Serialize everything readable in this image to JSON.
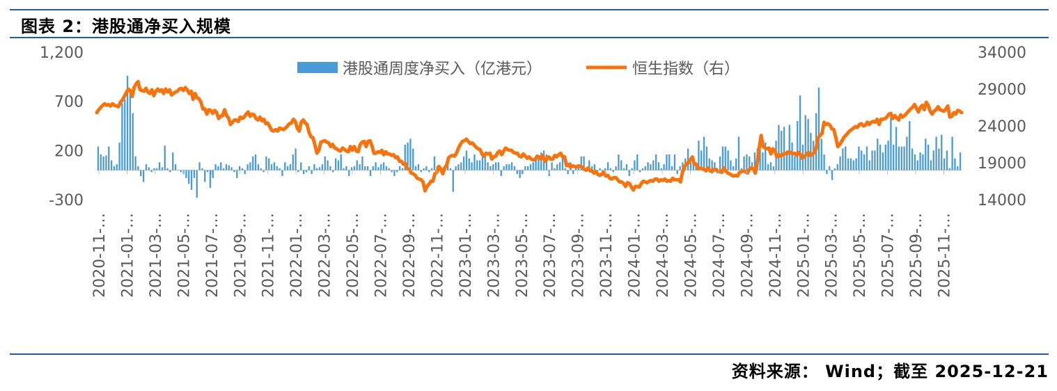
{
  "title": "图表 2：港股通净买入规模",
  "source": "资料来源： Wind；截至 2025-12-21",
  "colors": {
    "bar": "#4a9ad8",
    "line": "#f5740f",
    "rule": "#1f5f9f",
    "text": "#595959"
  },
  "chart_data": {
    "type": "bar+line",
    "y_left": {
      "min": -300,
      "max": 1200,
      "ticks": [
        "-300",
        "200",
        "700",
        "1,200"
      ]
    },
    "y_right": {
      "min": 14000,
      "max": 34000,
      "ticks": [
        "14000",
        "19000",
        "24000",
        "29000",
        "34000"
      ]
    },
    "x_ticks": [
      "2020-11-…",
      "2021-01-…",
      "2021-03-…",
      "2021-05-…",
      "2021-07-…",
      "2021-09-…",
      "2021-11-…",
      "2022-01-…",
      "2022-03-…",
      "2022-05-…",
      "2022-07-…",
      "2022-09-…",
      "2022-11-…",
      "2023-01-…",
      "2023-03-…",
      "2023-05-…",
      "2023-07-…",
      "2023-09-…",
      "2023-11-…",
      "2024-01-…",
      "2024-03-…",
      "2024-05-…",
      "2024-07-…",
      "2024-09-…",
      "2024-11-…",
      "2025-01-…",
      "2025-03-…",
      "2025-05-…",
      "2025-07-…",
      "2025-09-…",
      "2025-11-…"
    ],
    "series": [
      {
        "name": "港股通周度净买入（亿港元）",
        "axis": "left",
        "kind": "bar",
        "values": [
          240,
          160,
          140,
          150,
          240,
          100,
          40,
          60,
          280,
          680,
          720,
          960,
          800,
          580,
          140,
          40,
          -60,
          -120,
          60,
          30,
          -20,
          20,
          20,
          80,
          30,
          250,
          20,
          -20,
          180,
          60,
          0,
          -20,
          -40,
          -80,
          -140,
          -200,
          -80,
          -280,
          80,
          20,
          -120,
          -20,
          -180,
          -80,
          60,
          40,
          80,
          20,
          60,
          50,
          30,
          -20,
          -80,
          40,
          20,
          -40,
          60,
          80,
          140,
          160,
          60,
          20,
          -20,
          140,
          120,
          60,
          80,
          40,
          20,
          -60,
          80,
          40,
          60,
          160,
          220,
          -20,
          80,
          -40,
          -20,
          40,
          -40,
          60,
          20,
          30,
          60,
          140,
          100,
          40,
          -20,
          120,
          100,
          160,
          20,
          40,
          -60,
          30,
          40,
          100,
          60,
          140,
          40,
          40,
          -60,
          40,
          80,
          30,
          60,
          80,
          40,
          20,
          -20,
          -60,
          -20,
          40,
          20,
          260,
          280,
          320,
          220,
          40,
          60,
          -20,
          20,
          40,
          -20,
          20,
          140,
          40,
          20,
          -20,
          20,
          80,
          20,
          -220,
          40,
          60,
          80,
          140,
          200,
          120,
          80,
          160,
          100,
          100,
          140,
          160,
          80,
          40,
          60,
          80,
          80,
          -60,
          40,
          60,
          60,
          80,
          40,
          -40,
          -80,
          -40,
          40,
          40,
          60,
          80,
          140,
          140,
          180,
          200,
          160,
          -60,
          80,
          20,
          60,
          80,
          120,
          20,
          -40,
          80,
          -40,
          20,
          40,
          140,
          140,
          20,
          100,
          40,
          60,
          -20,
          20,
          -60,
          20,
          80,
          20,
          -20,
          40,
          160,
          100,
          20,
          60,
          -60,
          20,
          100,
          160,
          -20,
          20,
          40,
          80,
          60,
          100,
          160,
          80,
          20,
          60,
          160,
          160,
          40,
          160,
          -40,
          40,
          80,
          120,
          220,
          80,
          60,
          80,
          300,
          200,
          340,
          240,
          120,
          100,
          80,
          20,
          140,
          240,
          240,
          200,
          100,
          40,
          120,
          340,
          20,
          140,
          160,
          140,
          80,
          180,
          220,
          220,
          180,
          280,
          60,
          80,
          40,
          300,
          460,
          400,
          440,
          200,
          460,
          280,
          140,
          500,
          760,
          260,
          560,
          520,
          380,
          300,
          580,
          840,
          320,
          160,
          -40,
          40,
          -100,
          20,
          60,
          140,
          220,
          240,
          120,
          120,
          100,
          120,
          240,
          200,
          160,
          240,
          100,
          200,
          200,
          320,
          260,
          180,
          260,
          300,
          540,
          260,
          440,
          240,
          240,
          240,
          340,
          500,
          220,
          160,
          100,
          180,
          160,
          320,
          260,
          100,
          200,
          340,
          220,
          360,
          120,
          200,
          20,
          340,
          120,
          40,
          180
        ]
      },
      {
        "name": "恒生指数（右）",
        "axis": "right",
        "kind": "line",
        "values": [
          25800,
          26200,
          26500,
          26800,
          27000,
          26800,
          26900,
          26700,
          27000,
          26800,
          26700,
          26600,
          27200,
          27500,
          28000,
          28500,
          29000,
          28800,
          28000,
          29200,
          29700,
          30000,
          28900,
          28800,
          28700,
          29100,
          28600,
          28400,
          28900,
          28100,
          28700,
          29000,
          28700,
          28900,
          28400,
          29000,
          28600,
          28900,
          28200,
          28400,
          28600,
          28700,
          29000,
          29100,
          28800,
          29200,
          28900,
          28400,
          28700,
          27600,
          28400,
          27800,
          27700,
          27200,
          26300,
          26300,
          25600,
          26200,
          26100,
          25700,
          26100,
          25800,
          25000,
          25300,
          25400,
          26200,
          25400,
          25100,
          24200,
          24500,
          24800,
          24800,
          24600,
          25200,
          25000,
          25200,
          25600,
          25900,
          25300,
          25600,
          25500,
          25000,
          24800,
          25200,
          24700,
          24900,
          24300,
          24400,
          23900,
          23400,
          23300,
          23500,
          23300,
          23700,
          23600,
          23500,
          23700,
          24000,
          24300,
          24400,
          24900,
          24600,
          23700,
          23300,
          24500,
          24800,
          24400,
          24200,
          23100,
          22500,
          22400,
          21400,
          20300,
          20700,
          21800,
          21900,
          22000,
          21800,
          21700,
          21200,
          21500,
          21000,
          20900,
          20700,
          20600,
          21000,
          20800,
          20600,
          20500,
          21200,
          20700,
          21200,
          20600,
          20500,
          21500,
          21800,
          21900,
          21200,
          21900,
          22000,
          21300,
          20300,
          20300,
          20500,
          20400,
          20700,
          20100,
          20500,
          20200,
          20200,
          20000,
          20100,
          19700,
          19800,
          19200,
          19200,
          18800,
          18900,
          18200,
          18100,
          17600,
          17500,
          17300,
          16900,
          16800,
          16700,
          16400,
          15200,
          15800,
          16100,
          16500,
          16500,
          17500,
          17700,
          18500,
          18200,
          17500,
          18300,
          18700,
          19700,
          19900,
          20000,
          19900,
          20300,
          21000,
          21500,
          21900,
          22000,
          22200,
          21900,
          21600,
          21700,
          21400,
          21100,
          20900,
          20800,
          20200,
          19900,
          20300,
          20200,
          20300,
          19500,
          19800,
          19900,
          20400,
          20600,
          20100,
          20600,
          21000,
          20800,
          20700,
          20700,
          20400,
          20300,
          20300,
          19900,
          19800,
          20200,
          19900,
          19600,
          19800,
          19500,
          19400,
          19400,
          19900,
          19800,
          19500,
          20000,
          19200,
          19500,
          19800,
          19500,
          19500,
          20000,
          19800,
          20100,
          20300,
          19800,
          19800,
          18600,
          18800,
          18400,
          18600,
          18500,
          18400,
          18600,
          18500,
          18400,
          18100,
          18000,
          18300,
          17900,
          17900,
          17600,
          17800,
          17400,
          17300,
          17500,
          17700,
          17200,
          17300,
          16900,
          16800,
          17000,
          17000,
          16700,
          16400,
          16400,
          16200,
          15800,
          16300,
          16200,
          15700,
          15300,
          15800,
          15800,
          15700,
          16200,
          16500,
          16400,
          16300,
          16500,
          16600,
          16500,
          16800,
          16800,
          16500,
          16700,
          16600,
          16800,
          16500,
          16600,
          16500,
          16900,
          16700,
          16700,
          16700,
          16400,
          17800,
          18400,
          18900,
          19000,
          19400,
          19800,
          18800,
          18800,
          18200,
          18300,
          18200,
          18100,
          17900,
          18300,
          17900,
          17800,
          18100,
          18100,
          17800,
          17800,
          17700,
          18300,
          17900,
          17600,
          17500,
          17300,
          17200,
          17300,
          17200,
          17700,
          17800,
          17900,
          17800,
          17600,
          18100,
          18300,
          18200,
          17600,
          19000,
          21000,
          22700,
          21200,
          21000,
          20900,
          21000,
          20200,
          20900,
          20600,
          19800,
          20100,
          19900,
          20100,
          20300,
          20200,
          20500,
          20400,
          20200,
          20300,
          20000,
          20400,
          20100,
          19600,
          19900,
          20100,
          20400,
          20000,
          20100,
          20400,
          21000,
          22400,
          22700,
          23000,
          24500,
          24200,
          24300,
          24100,
          23600,
          23500,
          22400,
          21200,
          21500,
          21900,
          22400,
          22700,
          23000,
          23300,
          23500,
          23700,
          23900,
          23800,
          24200,
          24300,
          24000,
          24100,
          24500,
          24200,
          24500,
          24600,
          24500,
          24900,
          24200,
          24900,
          24900,
          25000,
          25200,
          25600,
          25700,
          25000,
          25400,
          25100,
          24800,
          25500,
          25200,
          25400,
          25700,
          26000,
          26300,
          26500,
          26900,
          26400,
          25900,
          26500,
          26800,
          26200,
          27200,
          26800,
          26000,
          25600,
          26000,
          26200,
          26600,
          26200,
          26100,
          26000,
          26300,
          26700,
          25200,
          25300,
          25800,
          25600,
          26100,
          26000,
          25800
        ]
      }
    ]
  }
}
